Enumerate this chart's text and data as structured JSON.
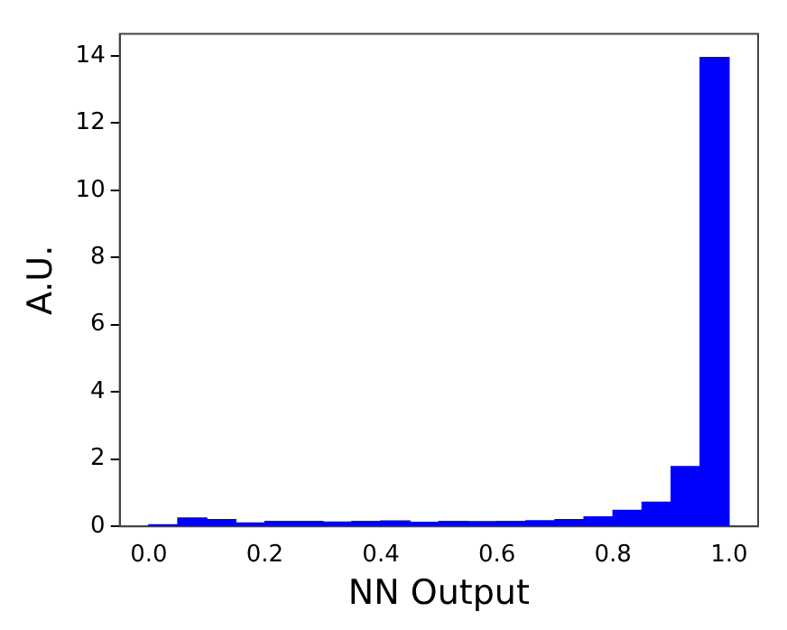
{
  "chart_data": {
    "type": "histogram",
    "xlabel": "NN Output",
    "ylabel": "A.U.",
    "color": "#0000ff",
    "bins": [
      0,
      0.05,
      0.1,
      0.15,
      0.2,
      0.25,
      0.3,
      0.35,
      0.4,
      0.45,
      0.5,
      0.55,
      0.6,
      0.65,
      0.7,
      0.75,
      0.8,
      0.85,
      0.9,
      0.95,
      1.0
    ],
    "values": [
      0.05,
      0.25,
      0.2,
      0.1,
      0.15,
      0.15,
      0.13,
      0.15,
      0.16,
      0.12,
      0.15,
      0.14,
      0.15,
      0.17,
      0.2,
      0.28,
      0.48,
      0.72,
      1.78,
      13.95
    ],
    "xlim": [
      -0.05,
      1.05
    ],
    "xticks": [
      {
        "value": 0,
        "label": "0.0"
      },
      {
        "value": 0.2,
        "label": "0.2"
      },
      {
        "value": 0.4,
        "label": "0.4"
      },
      {
        "value": 0.6,
        "label": "0.6"
      },
      {
        "value": 0.8,
        "label": "0.8"
      },
      {
        "value": 1,
        "label": "1.0"
      }
    ],
    "ylim": [
      0,
      14.65
    ],
    "yticks": [
      0,
      2,
      4,
      6,
      8,
      10,
      12,
      14
    ],
    "grid": false,
    "legend": false
  }
}
